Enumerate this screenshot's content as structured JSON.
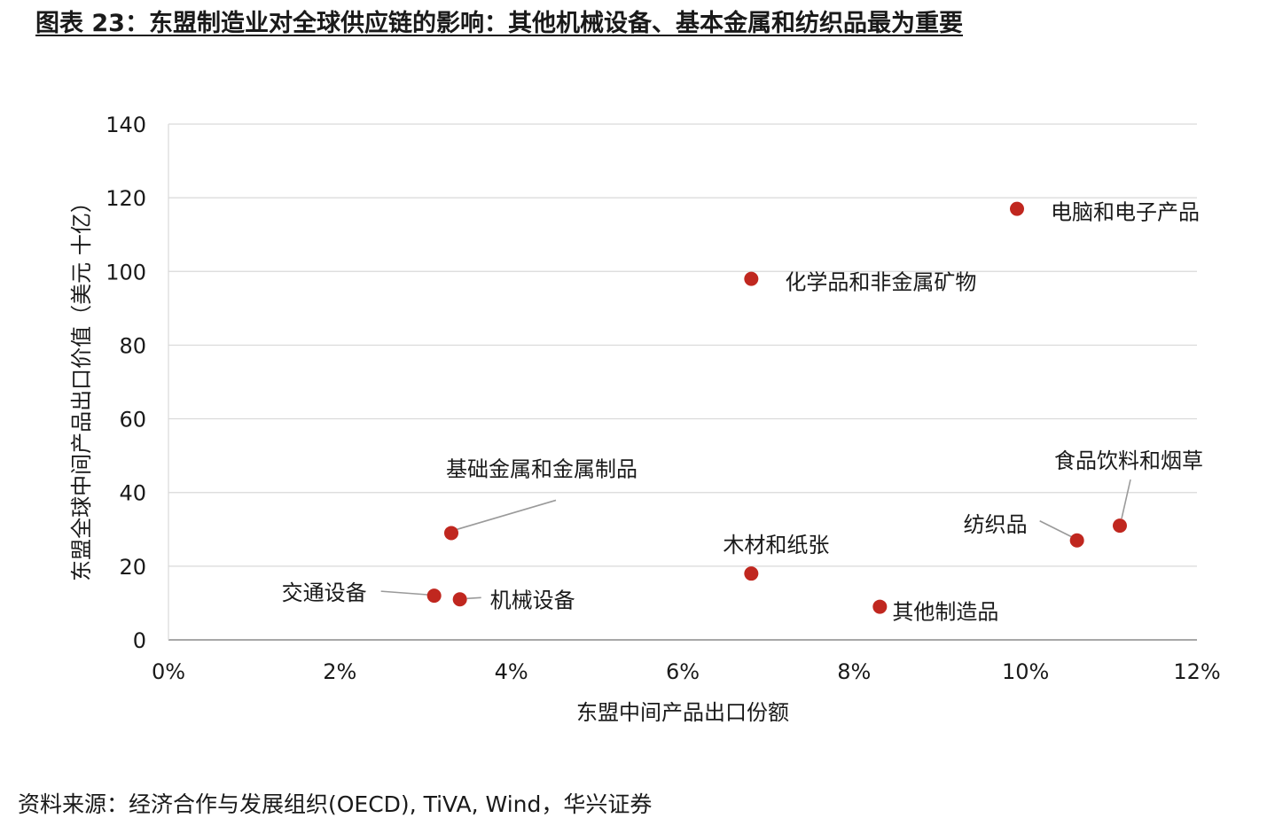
{
  "title": "图表 23：东盟制造业对全球供应链的影响：其他机械设备、基本金属和纺织品最为重要",
  "source": "资料来源：经济合作与发展组织(OECD), TiVA, Wind，华兴证券",
  "chart_data": {
    "type": "scatter",
    "xlabel": "东盟中间产品出口份额",
    "ylabel": "东盟全球中间产品出口价值（美元  十亿）",
    "xlim": [
      0,
      12
    ],
    "ylim": [
      0,
      140
    ],
    "x_ticks": [
      "0%",
      "2%",
      "4%",
      "6%",
      "8%",
      "10%",
      "12%"
    ],
    "y_ticks": [
      "0",
      "20",
      "40",
      "60",
      "80",
      "100",
      "120",
      "140"
    ],
    "grid": "horizontal",
    "marker_color": "#c0271f",
    "points": [
      {
        "label": "电脑和电子产品",
        "x": 9.9,
        "y": 117
      },
      {
        "label": "化学品和非金属矿物",
        "x": 6.8,
        "y": 98
      },
      {
        "label": "基础金属和金属制品",
        "x": 3.3,
        "y": 29
      },
      {
        "label": "食品饮料和烟草",
        "x": 11.1,
        "y": 31
      },
      {
        "label": "纺织品",
        "x": 10.6,
        "y": 27
      },
      {
        "label": "木材和纸张",
        "x": 6.8,
        "y": 18
      },
      {
        "label": "交通设备",
        "x": 3.1,
        "y": 12
      },
      {
        "label": "机械设备",
        "x": 3.4,
        "y": 11
      },
      {
        "label": "其他制造品",
        "x": 8.3,
        "y": 9
      }
    ]
  }
}
